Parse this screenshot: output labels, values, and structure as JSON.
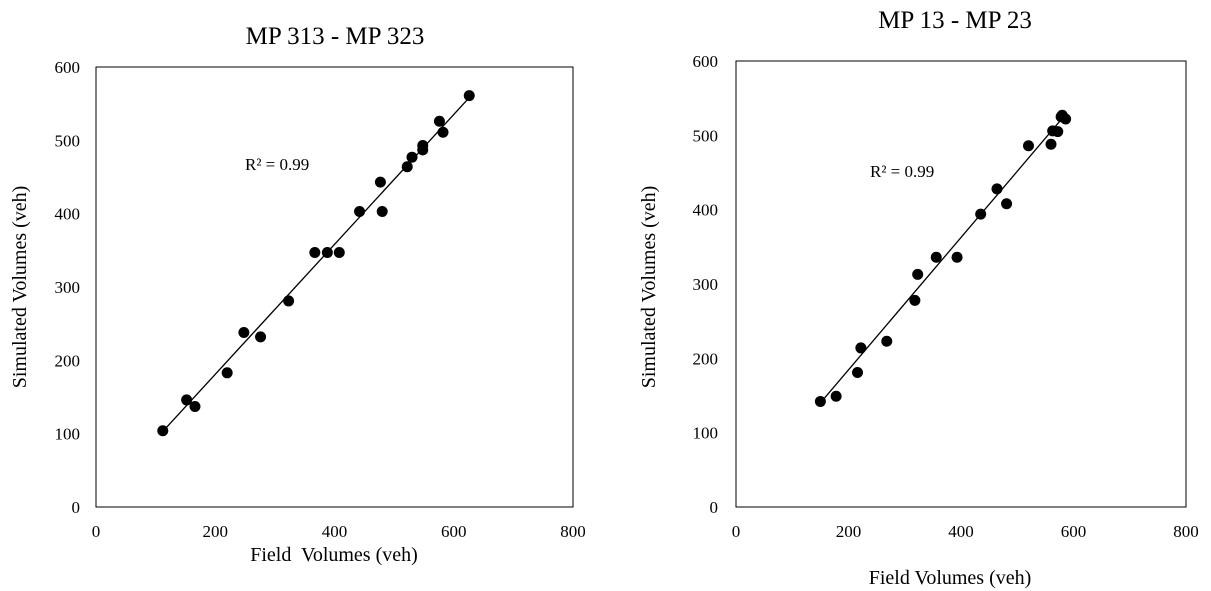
{
  "chart_data": [
    {
      "type": "scatter",
      "title": "MP 313 - MP 323",
      "xlabel": "Field  Volumes (veh)",
      "ylabel": "Simulated Volumes (veh)",
      "xlim": [
        0,
        800
      ],
      "ylim": [
        0,
        600
      ],
      "xticks": [
        "0",
        "200",
        "400",
        "600",
        "800"
      ],
      "yticks": [
        "0",
        "100",
        "200",
        "300",
        "400",
        "500",
        "600"
      ],
      "grid": false,
      "annotation": "R² = 0.99",
      "trendline": {
        "x": [
          112,
          628
        ],
        "y": [
          103,
          560
        ]
      },
      "series": [
        {
          "points": [
            [
              112,
              104
            ],
            [
              152,
              146
            ],
            [
              166,
              137
            ],
            [
              220,
              183
            ],
            [
              248,
              238
            ],
            [
              276,
              232
            ],
            [
              323,
              281
            ],
            [
              367,
              347
            ],
            [
              388,
              347
            ],
            [
              408,
              347
            ],
            [
              442,
              403
            ],
            [
              477,
              443
            ],
            [
              480,
              403
            ],
            [
              522,
              464
            ],
            [
              530,
              477
            ],
            [
              548,
              487
            ],
            [
              548,
              493
            ],
            [
              576,
              526
            ],
            [
              582,
              511
            ],
            [
              626,
              561
            ]
          ]
        }
      ]
    },
    {
      "type": "scatter",
      "title": "MP 13 - MP 23",
      "xlabel": "Field Volumes (veh)",
      "ylabel": "Simulated Volumes (veh)",
      "xlim": [
        0,
        800
      ],
      "ylim": [
        0,
        600
      ],
      "xticks": [
        "0",
        "200",
        "400",
        "600",
        "800"
      ],
      "yticks": [
        "0",
        "100",
        "200",
        "300",
        "400",
        "500",
        "600"
      ],
      "grid": false,
      "annotation": "R² = 0.99",
      "trendline": {
        "x": [
          150,
          588
        ],
        "y": [
          140,
          530
        ]
      },
      "series": [
        {
          "points": [
            [
              150,
              142
            ],
            [
              178,
              149
            ],
            [
              216,
              181
            ],
            [
              222,
              214
            ],
            [
              268,
              223
            ],
            [
              318,
              278
            ],
            [
              323,
              313
            ],
            [
              356,
              336
            ],
            [
              393,
              336
            ],
            [
              435,
              394
            ],
            [
              464,
              428
            ],
            [
              481,
              408
            ],
            [
              520,
              486
            ],
            [
              560,
              488
            ],
            [
              563,
              506
            ],
            [
              572,
              505
            ],
            [
              578,
              525
            ],
            [
              580,
              527
            ],
            [
              586,
              522
            ]
          ]
        }
      ]
    }
  ]
}
